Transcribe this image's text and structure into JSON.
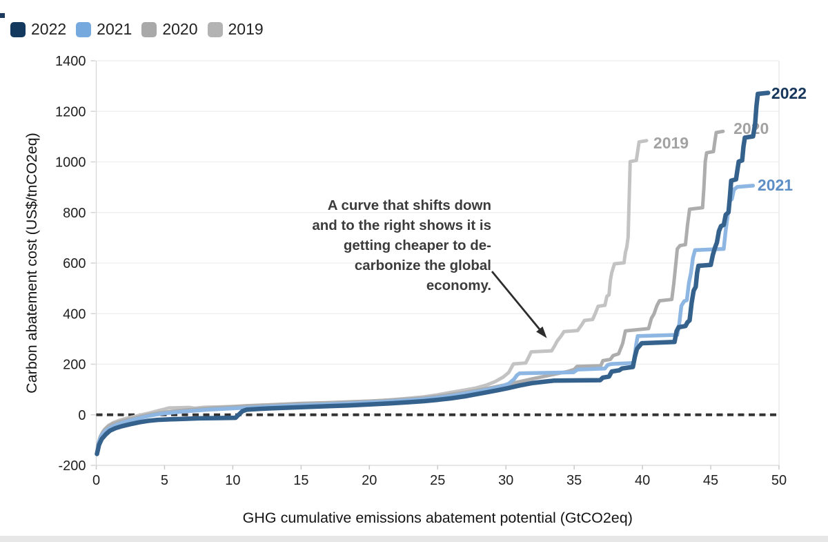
{
  "legend": {
    "items": [
      {
        "label": "2022",
        "color": "#14395f"
      },
      {
        "label": "2021",
        "color": "#76a9dd"
      },
      {
        "label": "2020",
        "color": "#a9a9a9"
      },
      {
        "label": "2019",
        "color": "#b3b3b3"
      }
    ]
  },
  "chart_data": {
    "type": "line",
    "subtype": "stepped-cost-curves",
    "title": "",
    "xlabel": "GHG cumulative emissions abatement potential (GtCO2eq)",
    "ylabel": "Carbon abatement cost (US$/tnCO2eq)",
    "xlim": [
      0,
      50
    ],
    "ylim": [
      -200,
      1400
    ],
    "x_ticks": [
      0,
      5,
      10,
      15,
      20,
      25,
      30,
      35,
      40,
      45,
      50
    ],
    "y_ticks": [
      -200,
      0,
      200,
      400,
      600,
      800,
      1000,
      1200,
      1400
    ],
    "grid": "horizontal-only",
    "legend_position": "top-left",
    "zero_line": {
      "y": 0,
      "style": "dashed",
      "color": "#333333"
    },
    "annotation": {
      "lines": [
        "A curve that shifts down",
        "and to the right shows it is",
        "getting cheaper to de-",
        "carbonize the global",
        "economy."
      ],
      "align": "right",
      "anchor_x": 28.93,
      "first_baseline_y": 810,
      "arrow_from": [
        28.98,
        567
      ],
      "arrow_to": [
        33.0,
        303
      ],
      "color": "#3c3c3c"
    },
    "series": [
      {
        "name": "2019",
        "color": "#c3c3c3",
        "width": 5,
        "label_color": "#a2a2a2",
        "label_pos": [
          40.8,
          1075
        ],
        "points": [
          [
            0.05,
            -155
          ],
          [
            0.1,
            -120
          ],
          [
            0.25,
            -95
          ],
          [
            0.4,
            -75
          ],
          [
            0.6,
            -58
          ],
          [
            0.9,
            -42
          ],
          [
            1.3,
            -30
          ],
          [
            1.7,
            -22
          ],
          [
            2.2,
            -14
          ],
          [
            2.8,
            -7
          ],
          [
            3.3,
            0
          ],
          [
            3.9,
            7
          ],
          [
            4.4,
            14
          ],
          [
            4.9,
            21
          ],
          [
            5.3,
            27
          ],
          [
            6.8,
            29
          ],
          [
            7.2,
            26
          ],
          [
            8,
            30
          ],
          [
            9,
            31
          ],
          [
            10,
            33
          ],
          [
            11,
            36
          ],
          [
            13,
            40
          ],
          [
            15,
            44
          ],
          [
            17,
            48
          ],
          [
            19,
            52
          ],
          [
            20,
            54
          ],
          [
            21,
            57
          ],
          [
            22,
            61
          ],
          [
            23,
            66
          ],
          [
            24,
            71
          ],
          [
            25,
            79
          ],
          [
            26,
            89
          ],
          [
            27,
            98
          ],
          [
            27.8,
            106
          ],
          [
            28.6,
            118
          ],
          [
            29.2,
            131
          ],
          [
            29.8,
            149
          ],
          [
            30.2,
            167
          ],
          [
            30.4,
            186
          ],
          [
            30.55,
            201
          ],
          [
            31.45,
            205
          ],
          [
            31.65,
            226
          ],
          [
            31.85,
            249
          ],
          [
            33.35,
            253
          ],
          [
            33.55,
            271
          ],
          [
            33.75,
            291
          ],
          [
            34.05,
            312
          ],
          [
            34.25,
            329
          ],
          [
            35.25,
            333
          ],
          [
            35.55,
            356
          ],
          [
            35.75,
            373
          ],
          [
            36.35,
            377
          ],
          [
            36.55,
            401
          ],
          [
            36.75,
            429
          ],
          [
            37.25,
            433
          ],
          [
            37.4,
            469
          ],
          [
            37.55,
            474
          ],
          [
            37.65,
            532
          ],
          [
            37.75,
            562
          ],
          [
            37.95,
            597
          ],
          [
            38.65,
            601
          ],
          [
            38.75,
            642
          ],
          [
            38.85,
            662
          ],
          [
            38.95,
            702
          ],
          [
            39.0,
            801
          ],
          [
            39.05,
            901
          ],
          [
            39.1,
            1001
          ],
          [
            39.55,
            1006
          ],
          [
            39.65,
            1042
          ],
          [
            39.75,
            1079
          ],
          [
            40.3,
            1084
          ]
        ]
      },
      {
        "name": "2020",
        "color": "#adadad",
        "width": 5,
        "label_color": "#a2a2a2",
        "label_pos": [
          46.67,
          1132
        ],
        "points": [
          [
            0.05,
            -155
          ],
          [
            0.15,
            -112
          ],
          [
            0.3,
            -86
          ],
          [
            0.5,
            -66
          ],
          [
            0.8,
            -49
          ],
          [
            1.2,
            -36
          ],
          [
            1.8,
            -26
          ],
          [
            2.4,
            -17
          ],
          [
            3.0,
            -10
          ],
          [
            3.55,
            -3
          ],
          [
            4.2,
            4
          ],
          [
            5.0,
            10
          ],
          [
            6.0,
            16
          ],
          [
            7.0,
            21
          ],
          [
            8.0,
            25
          ],
          [
            9.5,
            30
          ],
          [
            11,
            35
          ],
          [
            13,
            40
          ],
          [
            15,
            45
          ],
          [
            17,
            48
          ],
          [
            18.5,
            51
          ],
          [
            20,
            54
          ],
          [
            21.5,
            58
          ],
          [
            23,
            63
          ],
          [
            24,
            67
          ],
          [
            25,
            73
          ],
          [
            26,
            81
          ],
          [
            27,
            89
          ],
          [
            28,
            98
          ],
          [
            29,
            108
          ],
          [
            30,
            119
          ],
          [
            31,
            131
          ],
          [
            32,
            143
          ],
          [
            33,
            154
          ],
          [
            33.8,
            163
          ],
          [
            34.5,
            171
          ],
          [
            35.0,
            179
          ],
          [
            35.2,
            191
          ],
          [
            36.95,
            194
          ],
          [
            37.1,
            214
          ],
          [
            37.65,
            219
          ],
          [
            37.85,
            234
          ],
          [
            38.25,
            241
          ],
          [
            38.55,
            282
          ],
          [
            38.75,
            332
          ],
          [
            40.45,
            341
          ],
          [
            40.65,
            381
          ],
          [
            40.85,
            399
          ],
          [
            41.05,
            431
          ],
          [
            41.25,
            451
          ],
          [
            42.15,
            456
          ],
          [
            42.3,
            521
          ],
          [
            42.45,
            601
          ],
          [
            42.55,
            656
          ],
          [
            42.75,
            669
          ],
          [
            43.15,
            673
          ],
          [
            43.3,
            751
          ],
          [
            43.45,
            813
          ],
          [
            44.4,
            819
          ],
          [
            44.5,
            901
          ],
          [
            44.6,
            1001
          ],
          [
            44.7,
            1036
          ],
          [
            45.2,
            1041
          ],
          [
            45.3,
            1081
          ],
          [
            45.4,
            1116
          ],
          [
            45.9,
            1121
          ]
        ]
      },
      {
        "name": "2021",
        "color": "#8db7e2",
        "width": 5.5,
        "label_color": "#5d8ec6",
        "label_pos": [
          48.43,
          909
        ],
        "points": [
          [
            0.05,
            -155
          ],
          [
            0.2,
            -106
          ],
          [
            0.4,
            -81
          ],
          [
            0.7,
            -63
          ],
          [
            1.1,
            -49
          ],
          [
            1.5,
            -39
          ],
          [
            2.0,
            -30
          ],
          [
            2.6,
            -21
          ],
          [
            3.2,
            -13
          ],
          [
            3.8,
            -5
          ],
          [
            4.4,
            1
          ],
          [
            5.2,
            7
          ],
          [
            6.2,
            12
          ],
          [
            7.2,
            16
          ],
          [
            8.2,
            20
          ],
          [
            9.5,
            24
          ],
          [
            11,
            28
          ],
          [
            12.5,
            32
          ],
          [
            14,
            36
          ],
          [
            15.5,
            39
          ],
          [
            17,
            42
          ],
          [
            18.5,
            45
          ],
          [
            20,
            49
          ],
          [
            21.5,
            53
          ],
          [
            23,
            58
          ],
          [
            24,
            62
          ],
          [
            25,
            68
          ],
          [
            26,
            75
          ],
          [
            27,
            84
          ],
          [
            28,
            93
          ],
          [
            28.8,
            101
          ],
          [
            29.6,
            111
          ],
          [
            30.2,
            123
          ],
          [
            30.6,
            141
          ],
          [
            30.8,
            156
          ],
          [
            31.0,
            164
          ],
          [
            34.95,
            168
          ],
          [
            35.25,
            179
          ],
          [
            37.25,
            183
          ],
          [
            37.45,
            197
          ],
          [
            37.75,
            201
          ],
          [
            39.35,
            205
          ],
          [
            39.45,
            241
          ],
          [
            39.55,
            281
          ],
          [
            39.65,
            311
          ],
          [
            42.55,
            316
          ],
          [
            42.7,
            361
          ],
          [
            42.85,
            431
          ],
          [
            43.05,
            449
          ],
          [
            43.25,
            453
          ],
          [
            43.4,
            521
          ],
          [
            43.55,
            561
          ],
          [
            43.7,
            621
          ],
          [
            43.85,
            651
          ],
          [
            45.95,
            656
          ],
          [
            46.1,
            731
          ],
          [
            46.25,
            791
          ],
          [
            46.4,
            846
          ],
          [
            46.55,
            853
          ],
          [
            46.7,
            891
          ],
          [
            46.95,
            901
          ],
          [
            48.1,
            906
          ]
        ]
      },
      {
        "name": "2022",
        "color": "#35618d",
        "width": 6.5,
        "label_color": "#16365c",
        "label_pos": [
          49.44,
          1271
        ],
        "points": [
          [
            0.05,
            -155
          ],
          [
            0.2,
            -119
          ],
          [
            0.4,
            -96
          ],
          [
            0.7,
            -77
          ],
          [
            1.0,
            -63
          ],
          [
            1.4,
            -53
          ],
          [
            1.9,
            -45
          ],
          [
            2.5,
            -37
          ],
          [
            3.2,
            -29
          ],
          [
            3.8,
            -24
          ],
          [
            4.5,
            -20
          ],
          [
            5.5,
            -18
          ],
          [
            6.5,
            -16
          ],
          [
            7.5,
            -14
          ],
          [
            9.0,
            -13
          ],
          [
            10.2,
            -12
          ],
          [
            10.35,
            -4
          ],
          [
            10.5,
            4
          ],
          [
            10.7,
            14
          ],
          [
            11.0,
            20
          ],
          [
            12.5,
            25
          ],
          [
            14,
            28
          ],
          [
            15.5,
            31
          ],
          [
            17,
            34
          ],
          [
            18.5,
            37
          ],
          [
            20,
            41
          ],
          [
            21.5,
            45
          ],
          [
            23,
            50
          ],
          [
            24,
            54
          ],
          [
            25,
            59
          ],
          [
            26,
            65
          ],
          [
            27,
            73
          ],
          [
            27.8,
            81
          ],
          [
            28.6,
            89
          ],
          [
            29.4,
            97
          ],
          [
            30.2,
            106
          ],
          [
            31,
            116
          ],
          [
            32,
            126
          ],
          [
            33,
            132
          ],
          [
            33.5,
            135
          ],
          [
            36.9,
            137
          ],
          [
            37.1,
            147
          ],
          [
            37.55,
            151
          ],
          [
            37.75,
            171
          ],
          [
            38.3,
            176
          ],
          [
            38.5,
            183
          ],
          [
            39.3,
            189
          ],
          [
            39.45,
            231
          ],
          [
            39.6,
            261
          ],
          [
            39.95,
            283
          ],
          [
            42.35,
            288
          ],
          [
            42.5,
            331
          ],
          [
            42.65,
            346
          ],
          [
            43.15,
            351
          ],
          [
            43.3,
            366
          ],
          [
            43.45,
            373
          ],
          [
            43.6,
            441
          ],
          [
            43.75,
            491
          ],
          [
            43.9,
            506
          ],
          [
            44.0,
            561
          ],
          [
            44.1,
            589
          ],
          [
            45.0,
            593
          ],
          [
            45.15,
            631
          ],
          [
            45.3,
            659
          ],
          [
            45.45,
            681
          ],
          [
            45.6,
            726
          ],
          [
            45.75,
            746
          ],
          [
            45.95,
            751
          ],
          [
            46.1,
            791
          ],
          [
            46.3,
            801
          ],
          [
            46.4,
            861
          ],
          [
            46.5,
            926
          ],
          [
            46.85,
            931
          ],
          [
            46.95,
            966
          ],
          [
            47.05,
            1001
          ],
          [
            47.3,
            1006
          ],
          [
            47.4,
            1061
          ],
          [
            47.5,
            1096
          ],
          [
            48.1,
            1101
          ],
          [
            48.25,
            1151
          ],
          [
            48.35,
            1221
          ],
          [
            48.45,
            1269
          ],
          [
            49.2,
            1273
          ]
        ]
      }
    ]
  }
}
